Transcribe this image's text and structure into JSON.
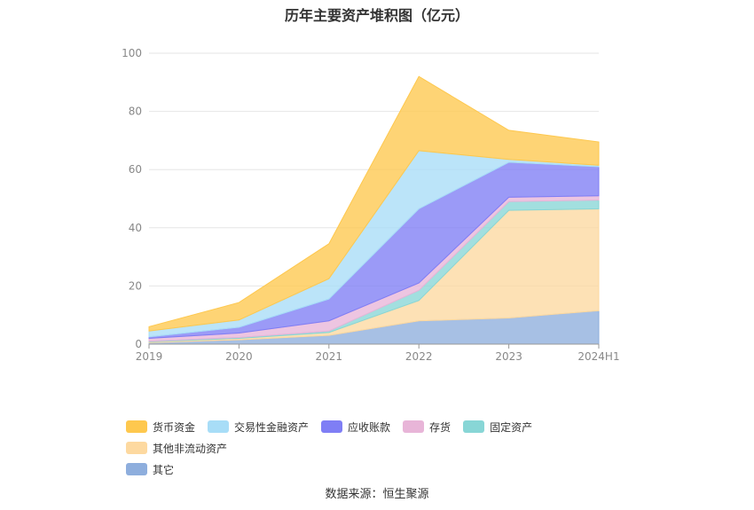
{
  "source_text": "数据来源：恒生聚源",
  "chart_data": {
    "type": "area",
    "stacked": true,
    "title": "历年主要资产堆积图（亿元）",
    "categories": [
      "2019",
      "2020",
      "2021",
      "2022",
      "2023",
      "2024H1"
    ],
    "ylim": [
      0,
      100
    ],
    "yticks": [
      0,
      20,
      40,
      60,
      80,
      100
    ],
    "grid": true,
    "legend_position": "bottom-left",
    "series": [
      {
        "name": "其它",
        "color": "#8eaedd",
        "values": [
          0.5,
          1.5,
          3,
          8,
          9,
          11.5
        ]
      },
      {
        "name": "其他非流动资产",
        "color": "#fdd9a0",
        "values": [
          0.3,
          0.5,
          1,
          7,
          37,
          35
        ]
      },
      {
        "name": "固定资产",
        "color": "#88d6d6",
        "values": [
          0.2,
          0.3,
          0.5,
          3.5,
          3,
          3
        ]
      },
      {
        "name": "存货",
        "color": "#e8b5d8",
        "values": [
          1,
          1.5,
          3.5,
          2.5,
          1.5,
          1.5
        ]
      },
      {
        "name": "应收账款",
        "color": "#7f7ef5",
        "values": [
          0.5,
          2,
          7.5,
          25.5,
          12,
          10
        ]
      },
      {
        "name": "交易性金融资产",
        "color": "#a8ddf7",
        "values": [
          2,
          2.5,
          7,
          20,
          1,
          0.5
        ]
      },
      {
        "name": "货币资金",
        "color": "#fec84e",
        "values": [
          1.5,
          6,
          12,
          25.5,
          10,
          8
        ]
      }
    ],
    "legend_order": [
      "货币资金",
      "交易性金融资产",
      "应收账款",
      "存货",
      "固定资产",
      "其他非流动资产",
      "其它"
    ]
  }
}
